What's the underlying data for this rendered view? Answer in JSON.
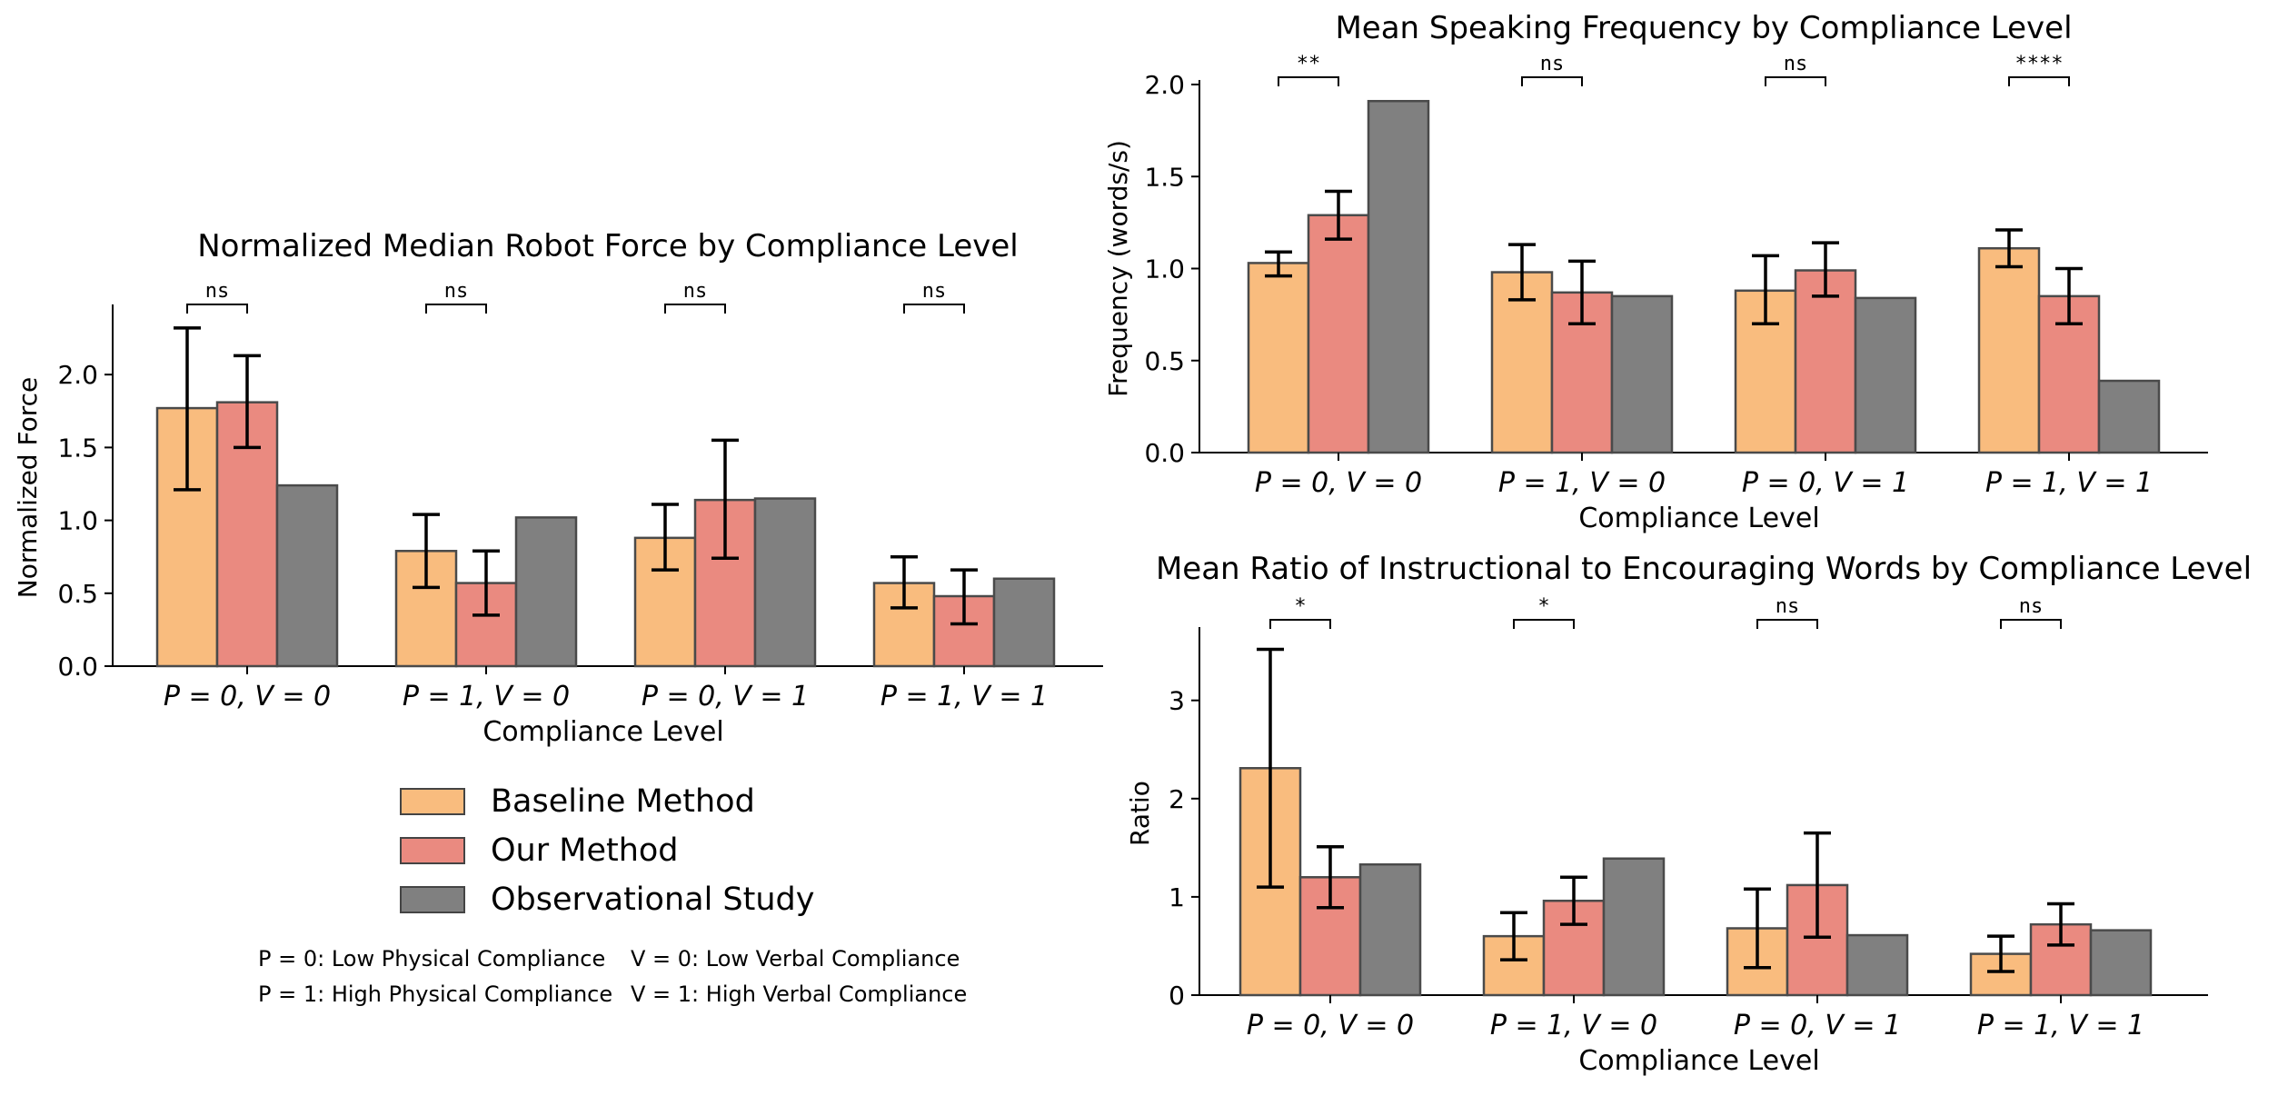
{
  "chart_data": [
    {
      "type": "bar",
      "title": "Normalized Median Robot Force by Compliance Level",
      "xlabel": "Compliance Level",
      "ylabel": "Normalized Force",
      "ylim": [
        0,
        2.45
      ],
      "yticks": [
        "0.0",
        "0.5",
        "1.0",
        "1.5",
        "2.0"
      ],
      "categories": [
        "P = 0, V = 0",
        "P = 1, V = 0",
        "P = 0, V = 1",
        "P = 1, V = 1"
      ],
      "series": [
        {
          "name": "Baseline Method",
          "values": [
            1.77,
            0.79,
            0.88,
            0.57
          ],
          "err_low": [
            1.21,
            0.54,
            0.66,
            0.4
          ],
          "err_high": [
            2.32,
            1.04,
            1.11,
            0.75
          ]
        },
        {
          "name": "Our Method",
          "values": [
            1.81,
            0.57,
            1.14,
            0.48
          ],
          "err_low": [
            1.5,
            0.35,
            0.74,
            0.29
          ],
          "err_high": [
            2.13,
            0.79,
            1.55,
            0.66
          ]
        },
        {
          "name": "Observational Study",
          "values": [
            1.24,
            1.02,
            1.15,
            0.6
          ]
        }
      ],
      "significance": [
        "ns",
        "ns",
        "ns",
        "ns"
      ],
      "grid": false
    },
    {
      "type": "bar",
      "title": "Mean Speaking Frequency by Compliance Level",
      "xlabel": "Compliance Level",
      "ylabel": "Frequency (words/s)",
      "ylim": [
        0,
        2.0
      ],
      "yticks": [
        "0.0",
        "0.5",
        "1.0",
        "1.5",
        "2.0"
      ],
      "categories": [
        "P = 0, V = 0",
        "P = 1, V = 0",
        "P = 0, V = 1",
        "P = 1, V = 1"
      ],
      "series": [
        {
          "name": "Baseline Method",
          "values": [
            1.03,
            0.98,
            0.88,
            1.11
          ],
          "err_low": [
            0.96,
            0.83,
            0.7,
            1.01
          ],
          "err_high": [
            1.09,
            1.13,
            1.07,
            1.21
          ]
        },
        {
          "name": "Our Method",
          "values": [
            1.29,
            0.87,
            0.99,
            0.85
          ],
          "err_low": [
            1.16,
            0.7,
            0.85,
            0.7
          ],
          "err_high": [
            1.42,
            1.04,
            1.14,
            1.0
          ]
        },
        {
          "name": "Observational Study",
          "values": [
            1.91,
            0.85,
            0.84,
            0.39
          ]
        }
      ],
      "significance": [
        "**",
        "ns",
        "ns",
        "****"
      ],
      "grid": false
    },
    {
      "type": "bar",
      "title": "Mean Ratio of Instructional to Encouraging Words by Compliance Level",
      "xlabel": "Compliance Level",
      "ylabel": "Ratio",
      "ylim": [
        0,
        3.7
      ],
      "yticks": [
        "0",
        "1",
        "2",
        "3"
      ],
      "categories": [
        "P = 0, V = 0",
        "P = 1, V = 0",
        "P = 0, V = 1",
        "P = 1, V = 1"
      ],
      "series": [
        {
          "name": "Baseline Method",
          "values": [
            2.31,
            0.6,
            0.68,
            0.42
          ],
          "err_low": [
            1.1,
            0.36,
            0.28,
            0.24
          ],
          "err_high": [
            3.52,
            0.84,
            1.08,
            0.6
          ]
        },
        {
          "name": "Our Method",
          "values": [
            1.2,
            0.96,
            1.12,
            0.72
          ],
          "err_low": [
            0.89,
            0.72,
            0.59,
            0.51
          ],
          "err_high": [
            1.51,
            1.2,
            1.65,
            0.93
          ]
        },
        {
          "name": "Observational Study",
          "values": [
            1.33,
            1.39,
            0.61,
            0.66
          ]
        }
      ],
      "significance": [
        "*",
        "*",
        "ns",
        "ns"
      ],
      "grid": false
    }
  ],
  "legend": {
    "placement": "bottom-left",
    "items": [
      {
        "label": "Baseline Method",
        "color": "#F9BC7E"
      },
      {
        "label": "Our Method",
        "color": "#EA8A80"
      },
      {
        "label": "Observational Study",
        "color": "#808080"
      }
    ]
  },
  "notes": {
    "p0": "P = 0: Low Physical Compliance",
    "v0": "V = 0: Low Verbal Compliance",
    "p1": "P = 1: High Physical Compliance",
    "v1": "V = 1: High Verbal Compliance"
  },
  "colors": {
    "baseline": "#F9BC7E",
    "ours": "#EA8A80",
    "observational": "#808080",
    "bar_edge": "#4a4a4a"
  }
}
